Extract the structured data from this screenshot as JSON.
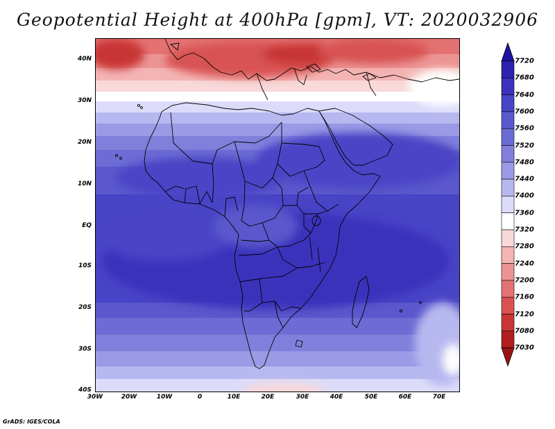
{
  "title": "Geopotential Height at 400hPa [gpm], VT: 2020032906",
  "footer": "GrADS: IGES/COLA",
  "lat_labels": [
    "40N",
    "30N",
    "20N",
    "10N",
    "EQ",
    "10S",
    "20S",
    "30S",
    "40S"
  ],
  "lon_labels": [
    "30W",
    "20W",
    "10W",
    "0",
    "10E",
    "20E",
    "30E",
    "40E",
    "50E",
    "60E",
    "70E"
  ],
  "colorbar": {
    "labels": [
      "7720",
      "7680",
      "7640",
      "7600",
      "7560",
      "7520",
      "7480",
      "7440",
      "7400",
      "7360",
      "7320",
      "7280",
      "7240",
      "7200",
      "7160",
      "7120",
      "7080",
      "7030"
    ],
    "colors": [
      "#1e12a0",
      "#2c22b0",
      "#3a32bc",
      "#4844c6",
      "#5a58cc",
      "#6c6cd4",
      "#8080dc",
      "#9a9ae6",
      "#b8b8f0",
      "#dcdcfa",
      "#ffffff",
      "#f8d8d8",
      "#f4b4b4",
      "#ec9494",
      "#e47272",
      "#d85252",
      "#c83636",
      "#b01e1e",
      "#9a1414"
    ]
  }
}
